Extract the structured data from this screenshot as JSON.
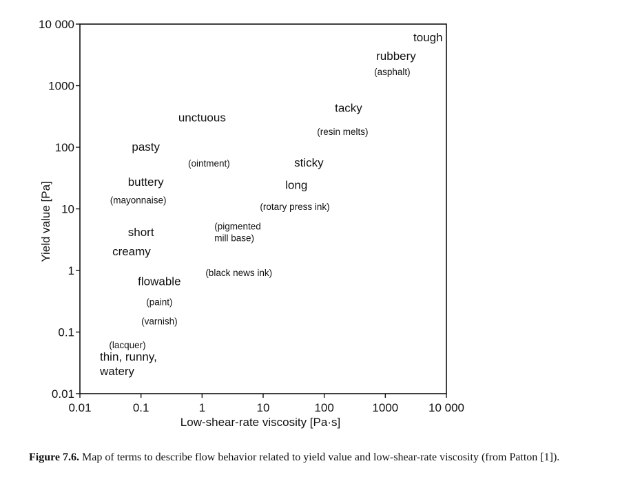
{
  "chart_data": {
    "type": "scatter",
    "title": "",
    "xlabel": "Low-shear-rate viscosity [Pa·s]",
    "ylabel": "Yield value [Pa]",
    "xscale": "log",
    "yscale": "log",
    "xlim": [
      0.01,
      10000
    ],
    "ylim": [
      0.01,
      10000
    ],
    "grid": false,
    "x_ticks": [
      {
        "value": 0.01,
        "label": "0.01"
      },
      {
        "value": 0.1,
        "label": "0.1"
      },
      {
        "value": 1,
        "label": "1"
      },
      {
        "value": 10,
        "label": "10"
      },
      {
        "value": 100,
        "label": "100"
      },
      {
        "value": 1000,
        "label": "1000"
      },
      {
        "value": 10000,
        "label": "10 000"
      }
    ],
    "y_ticks": [
      {
        "value": 0.01,
        "label": "0.01"
      },
      {
        "value": 0.1,
        "label": "0.1"
      },
      {
        "value": 1,
        "label": "1"
      },
      {
        "value": 10,
        "label": "10"
      },
      {
        "value": 100,
        "label": "100"
      },
      {
        "value": 1000,
        "label": "1000"
      },
      {
        "value": 10000,
        "label": "10 000"
      }
    ],
    "annotations": [
      {
        "text": "tough",
        "x": 5000,
        "y": 6000,
        "style": "term"
      },
      {
        "text": "rubbery",
        "x": 1500,
        "y": 3000,
        "style": "term"
      },
      {
        "text": "(asphalt)",
        "x": 1300,
        "y": 1700,
        "style": "example"
      },
      {
        "text": "tacky",
        "x": 250,
        "y": 430,
        "style": "term"
      },
      {
        "text": "(resin melts)",
        "x": 200,
        "y": 180,
        "style": "example"
      },
      {
        "text": "unctuous",
        "x": 1.0,
        "y": 300,
        "style": "term"
      },
      {
        "text": "pasty",
        "x": 0.12,
        "y": 100,
        "style": "term"
      },
      {
        "text": "(ointment)",
        "x": 1.3,
        "y": 55,
        "style": "example"
      },
      {
        "text": "sticky",
        "x": 56,
        "y": 55,
        "style": "term"
      },
      {
        "text": "buttery",
        "x": 0.12,
        "y": 27,
        "style": "term"
      },
      {
        "text": "(mayonnaise)",
        "x": 0.09,
        "y": 14,
        "style": "example"
      },
      {
        "text": "long",
        "x": 35,
        "y": 24,
        "style": "term"
      },
      {
        "text": "(rotary press ink)",
        "x": 33,
        "y": 11,
        "style": "example"
      },
      {
        "text": "(pigmented mill base)",
        "x": 4.5,
        "y": 4.2,
        "style": "example"
      },
      {
        "text": "short",
        "x": 0.1,
        "y": 4.1,
        "style": "term"
      },
      {
        "text": "creamy",
        "x": 0.07,
        "y": 2.0,
        "style": "term"
      },
      {
        "text": "(black news ink)",
        "x": 4.0,
        "y": 0.92,
        "style": "example"
      },
      {
        "text": "flowable",
        "x": 0.2,
        "y": 0.65,
        "style": "term"
      },
      {
        "text": "(paint)",
        "x": 0.2,
        "y": 0.31,
        "style": "example"
      },
      {
        "text": "(varnish)",
        "x": 0.2,
        "y": 0.15,
        "style": "example"
      },
      {
        "text": "(lacquer)",
        "x": 0.06,
        "y": 0.062,
        "style": "example"
      },
      {
        "text": "thin, runny, watery",
        "x": 0.06,
        "y": 0.03,
        "style": "term"
      }
    ]
  },
  "caption": {
    "label": "Figure 7.6.",
    "text": "Map of terms to describe flow behavior related to yield value and low-shear-rate viscosity (from Patton [1])."
  }
}
